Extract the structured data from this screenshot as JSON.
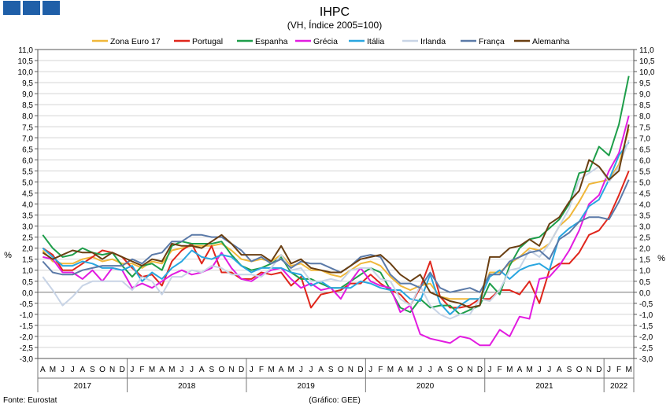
{
  "chart_data": {
    "type": "line",
    "title": "IHPC",
    "subtitle": "(VH, Índice 2005=100)",
    "ylabel_left": "%",
    "ylabel_right": "%",
    "ylim": [
      -3.0,
      11.0
    ],
    "ytick_step": 0.5,
    "yticks": [
      "11,0",
      "10,5",
      "10,0",
      "9,5",
      "9,0",
      "8,5",
      "8,0",
      "7,5",
      "7,0",
      "6,5",
      "6,0",
      "5,5",
      "5,0",
      "4,5",
      "4,0",
      "3,5",
      "3,0",
      "2,5",
      "2,0",
      "1,5",
      "1,0",
      "0,5",
      "0,0",
      "-0,5",
      "-1,0",
      "-1,5",
      "-2,0",
      "-2,5",
      "-3,0"
    ],
    "grid": true,
    "legend_position": "top",
    "months": [
      "A",
      "M",
      "J",
      "J",
      "A",
      "S",
      "O",
      "N",
      "D",
      "J",
      "F",
      "M",
      "A",
      "M",
      "J",
      "J",
      "A",
      "S",
      "O",
      "N",
      "D",
      "J",
      "F",
      "M",
      "A",
      "M",
      "J",
      "J",
      "A",
      "S",
      "O",
      "N",
      "D",
      "J",
      "F",
      "M",
      "A",
      "M",
      "J",
      "J",
      "A",
      "S",
      "O",
      "N",
      "D",
      "J",
      "F",
      "M",
      "A",
      "M",
      "J",
      "J",
      "A",
      "S",
      "O",
      "N",
      "D",
      "J",
      "F",
      "M"
    ],
    "years": [
      {
        "label": "2017",
        "start": 0,
        "end": 9
      },
      {
        "label": "2018",
        "start": 9,
        "end": 21
      },
      {
        "label": "2019",
        "start": 21,
        "end": 33
      },
      {
        "label": "2020",
        "start": 33,
        "end": 45
      },
      {
        "label": "2021",
        "start": 45,
        "end": 57
      },
      {
        "label": "2022",
        "start": 57,
        "end": 60
      }
    ],
    "series": [
      {
        "name": "Zona Euro 17",
        "color": "#f0b73a",
        "values": [
          1.9,
          1.4,
          1.3,
          1.3,
          1.5,
          1.6,
          1.4,
          1.5,
          1.3,
          1.3,
          1.1,
          1.4,
          1.3,
          1.9,
          2.0,
          2.1,
          2.1,
          2.1,
          2.2,
          1.9,
          1.5,
          1.4,
          1.5,
          1.4,
          1.7,
          1.2,
          1.3,
          1.0,
          1.0,
          0.8,
          0.7,
          1.0,
          1.3,
          1.4,
          1.2,
          0.7,
          0.3,
          0.1,
          0.3,
          0.4,
          -0.2,
          -0.3,
          -0.3,
          -0.3,
          -0.3,
          0.9,
          0.9,
          1.3,
          1.6,
          2.0,
          1.9,
          2.2,
          3.0,
          3.4,
          4.1,
          4.9,
          5.0,
          5.1,
          5.8,
          7.4
        ]
      },
      {
        "name": "Portugal",
        "color": "#e0261c",
        "values": [
          2.0,
          1.7,
          1.0,
          1.0,
          1.3,
          1.6,
          1.9,
          1.8,
          1.6,
          1.1,
          0.7,
          0.8,
          0.3,
          1.4,
          1.9,
          2.2,
          1.3,
          2.1,
          0.9,
          0.9,
          0.6,
          0.6,
          0.9,
          0.8,
          0.9,
          0.3,
          0.7,
          -0.7,
          -0.1,
          0.0,
          0.1,
          0.4,
          0.4,
          0.8,
          0.4,
          0.1,
          -0.1,
          -0.6,
          0.2,
          1.4,
          -0.2,
          -0.7,
          -0.7,
          -0.6,
          -0.3,
          -0.3,
          0.1,
          0.1,
          -0.1,
          0.5,
          -0.5,
          1.0,
          1.3,
          1.3,
          1.8,
          2.6,
          2.8,
          3.4,
          4.4,
          5.5
        ]
      },
      {
        "name": "Espanha",
        "color": "#1e9e4a",
        "values": [
          2.6,
          2.0,
          1.6,
          1.7,
          2.0,
          1.8,
          1.7,
          1.8,
          1.2,
          0.7,
          1.2,
          1.3,
          1.0,
          2.1,
          2.3,
          2.2,
          2.2,
          2.2,
          2.3,
          1.7,
          1.2,
          1.0,
          1.1,
          1.3,
          1.6,
          0.9,
          0.6,
          0.6,
          0.4,
          0.2,
          0.2,
          0.5,
          0.8,
          1.1,
          0.9,
          0.1,
          -0.7,
          -0.9,
          -0.3,
          -0.7,
          -0.6,
          -0.6,
          -1.0,
          -0.8,
          -0.6,
          0.4,
          -0.1,
          1.2,
          2.0,
          2.4,
          2.5,
          2.9,
          3.3,
          4.0,
          5.4,
          5.5,
          6.6,
          6.2,
          7.6,
          9.8
        ]
      },
      {
        "name": "Grécia",
        "color": "#e21ce0",
        "values": [
          1.6,
          1.5,
          0.9,
          0.9,
          0.6,
          1.0,
          0.5,
          1.1,
          1.0,
          0.2,
          0.4,
          0.2,
          0.5,
          0.8,
          1.0,
          0.8,
          0.9,
          1.1,
          1.8,
          1.1,
          0.6,
          0.5,
          0.8,
          1.0,
          1.1,
          0.6,
          0.2,
          0.4,
          0.1,
          0.2,
          -0.3,
          0.5,
          1.1,
          0.5,
          0.3,
          0.2,
          -0.9,
          -0.6,
          -1.9,
          -2.1,
          -2.2,
          -2.3,
          -2.0,
          -2.1,
          -2.4,
          -2.4,
          -1.7,
          -2.0,
          -1.1,
          -1.2,
          0.6,
          0.7,
          1.2,
          1.9,
          2.8,
          4.0,
          4.4,
          5.5,
          6.3,
          8.0
        ]
      },
      {
        "name": "Itália",
        "color": "#29a6e0",
        "values": [
          2.0,
          1.6,
          1.2,
          1.2,
          1.4,
          1.3,
          1.1,
          1.1,
          1.0,
          1.2,
          0.5,
          0.9,
          0.6,
          1.1,
          1.4,
          1.9,
          1.6,
          1.5,
          1.7,
          1.6,
          1.2,
          0.9,
          1.1,
          1.1,
          1.1,
          0.9,
          0.8,
          0.3,
          0.5,
          0.2,
          0.2,
          0.2,
          0.5,
          0.4,
          0.2,
          0.1,
          0.1,
          -0.3,
          -0.4,
          0.8,
          -0.5,
          -1.0,
          -0.6,
          -0.3,
          -0.3,
          0.7,
          1.0,
          0.6,
          1.0,
          1.2,
          1.3,
          1.0,
          2.5,
          2.9,
          3.2,
          3.9,
          4.2,
          5.1,
          6.2,
          6.8
        ]
      },
      {
        "name": "Irlanda",
        "color": "#c8d4e6",
        "values": [
          0.7,
          0.1,
          -0.6,
          -0.2,
          0.3,
          0.5,
          0.5,
          0.5,
          0.5,
          0.1,
          0.7,
          0.5,
          -0.1,
          0.7,
          0.7,
          1.0,
          0.9,
          1.2,
          1.1,
          0.8,
          0.8,
          0.8,
          0.7,
          1.1,
          1.7,
          1.0,
          1.1,
          0.5,
          0.5,
          0.6,
          0.5,
          1.0,
          1.1,
          1.1,
          0.6,
          0.5,
          -0.3,
          -0.6,
          0.3,
          -0.6,
          -1.0,
          -1.2,
          -1.0,
          -1.0,
          -0.3,
          -0.4,
          0.1,
          1.0,
          1.1,
          1.9,
          1.6,
          2.2,
          3.0,
          3.8,
          5.1,
          5.4,
          5.7,
          5.0,
          5.7,
          6.9
        ]
      },
      {
        "name": "França",
        "color": "#5b7aa8",
        "values": [
          1.4,
          0.9,
          0.8,
          0.8,
          1.0,
          1.1,
          1.2,
          1.2,
          1.2,
          1.5,
          1.3,
          1.7,
          1.8,
          2.3,
          2.3,
          2.6,
          2.6,
          2.5,
          2.5,
          2.2,
          1.9,
          1.4,
          1.6,
          1.3,
          1.5,
          1.1,
          1.4,
          1.3,
          1.3,
          1.1,
          0.9,
          1.2,
          1.6,
          1.7,
          1.6,
          0.8,
          0.4,
          0.4,
          0.2,
          0.9,
          0.2,
          0.0,
          0.1,
          0.2,
          0.0,
          0.8,
          0.8,
          1.4,
          1.6,
          1.8,
          1.9,
          1.5,
          2.4,
          2.7,
          3.2,
          3.4,
          3.4,
          3.3,
          4.1,
          5.1
        ]
      },
      {
        "name": "Alemanha",
        "color": "#6a3f12",
        "values": [
          1.8,
          1.5,
          1.7,
          1.9,
          1.8,
          1.8,
          1.5,
          1.8,
          1.6,
          1.4,
          1.2,
          1.5,
          1.4,
          2.2,
          2.1,
          2.1,
          2.0,
          2.3,
          2.6,
          2.2,
          1.7,
          1.7,
          1.7,
          1.4,
          2.1,
          1.3,
          1.5,
          1.1,
          1.0,
          0.9,
          0.9,
          1.2,
          1.5,
          1.6,
          1.7,
          1.3,
          0.8,
          0.5,
          0.8,
          0.0,
          -0.2,
          -0.4,
          -0.5,
          -0.7,
          -0.6,
          1.6,
          1.6,
          2.0,
          2.1,
          2.4,
          2.1,
          3.1,
          3.4,
          4.1,
          4.6,
          6.0,
          5.7,
          5.1,
          5.5,
          7.6
        ]
      }
    ]
  },
  "footer": {
    "source": "Fonte: Eurostat",
    "credit": "(Gráfico: GEE)"
  }
}
